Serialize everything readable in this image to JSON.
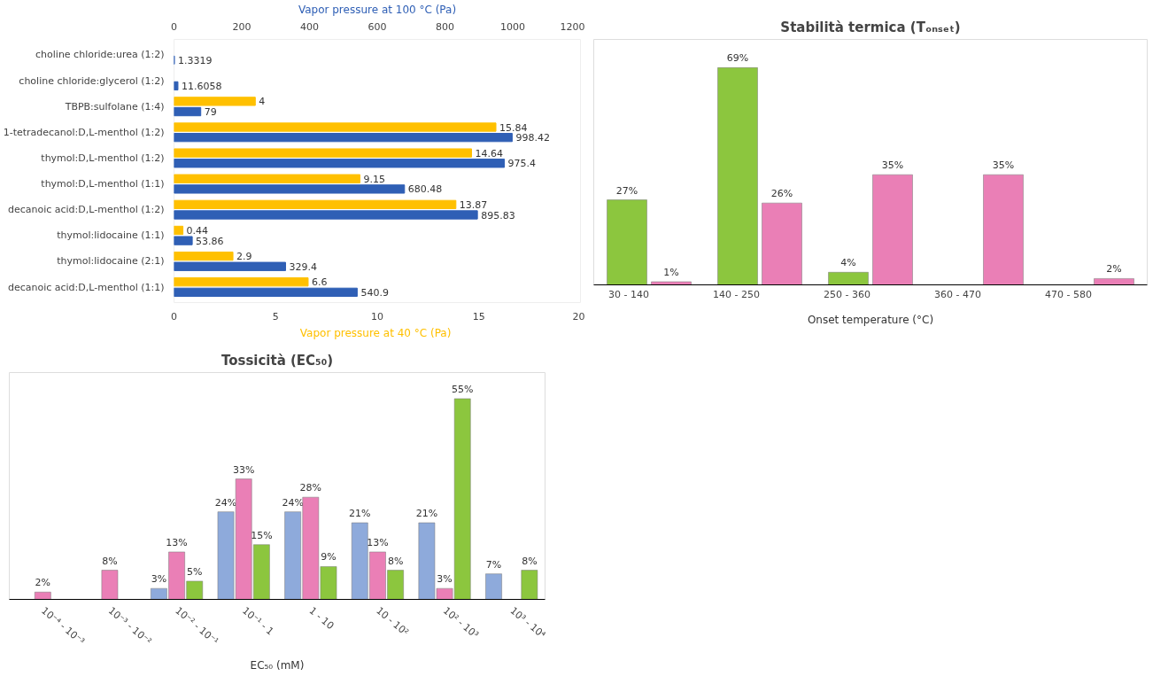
{
  "chart_data": [
    {
      "type": "bar",
      "orientation": "horizontal",
      "categories": [
        "choline chloride:urea (1:2)",
        "choline chloride:glycerol (1:2)",
        "TBPB:sulfolane (1:4)",
        "1-tetradecanol:D,L-menthol (1:2)",
        "thymol:D,L-menthol (1:2)",
        "thymol:D,L-menthol (1:1)",
        "decanoic acid:D,L-menthol (1:2)",
        "thymol:lidocaine (1:1)",
        "thymol:lidocaine (2:1)",
        "decanoic acid:D,L-menthol (1:1)"
      ],
      "xlabel": "Vapor pressure  at 40 °C (Pa)",
      "x2label": "Vapor pressure at 100 °C (Pa)",
      "xlim": [
        0,
        20
      ],
      "xticks": [
        0,
        5,
        10,
        15,
        20
      ],
      "x2lim": [
        0,
        1200
      ],
      "x2ticks": [
        0,
        200,
        400,
        600,
        800,
        1000,
        1200
      ],
      "series": [
        {
          "color": "#ffc000",
          "values": [
            null,
            null,
            4,
            15.84,
            14.64,
            9.15,
            13.87,
            0.44,
            2.9,
            6.6
          ]
        },
        {
          "color": "#2f5fb5",
          "axis": "x2",
          "values": [
            1.3319,
            11.6058,
            79,
            998.42,
            975.4,
            680.48,
            895.83,
            53.86,
            329.4,
            540.9
          ]
        }
      ],
      "data_labels": true,
      "grid": false
    },
    {
      "type": "bar",
      "title": "Stabilità termica (Tₒₙₛₑₜ)",
      "xlabel": "Onset temperature (°C)",
      "categories": [
        "30 - 140",
        "140 - 250",
        "250 - 360",
        "360 - 470",
        "470 - 580"
      ],
      "series": [
        {
          "color": "#8cc63e",
          "values": [
            27,
            69,
            4,
            null,
            null
          ],
          "value_labels": [
            "27%",
            "69%",
            "4%",
            null,
            null
          ]
        },
        {
          "color": "#ea7fb6",
          "values": [
            1,
            26,
            35,
            35,
            2
          ],
          "value_labels": [
            "1%",
            "26%",
            "35%",
            "35%",
            "2%"
          ]
        }
      ],
      "tick_labels": "x",
      "grid": false
    },
    {
      "type": "bar",
      "title": "Tossicità (EC₅₀)",
      "xlabel": "EC₅₀ (mM)",
      "categories": [
        "10⁻⁴ - 10⁻³",
        "10⁻³ - 10⁻²",
        "10⁻² - 10⁻¹",
        "10⁻¹ - 1",
        "1 - 10",
        "10 - 10²",
        "10² - 10³",
        "10³ - 10⁴"
      ],
      "series": [
        {
          "color": "#8eaadb",
          "values": [
            null,
            null,
            3,
            24,
            24,
            21,
            21,
            7
          ],
          "value_labels": [
            null,
            null,
            "3%",
            "24%",
            "24%",
            "21%",
            "21%",
            "7%"
          ]
        },
        {
          "color": "#ea7fb6",
          "values": [
            2,
            8,
            13,
            33,
            28,
            13,
            3,
            null
          ],
          "value_labels": [
            "2%",
            "8%",
            "13%",
            "33%",
            "28%",
            "13%",
            "3%",
            null
          ]
        },
        {
          "color": "#8cc63e",
          "values": [
            null,
            null,
            5,
            15,
            9,
            8,
            55,
            8
          ],
          "value_labels": [
            null,
            null,
            "5%",
            "15%",
            "9%",
            "8%",
            "55%",
            "8%"
          ]
        }
      ],
      "tick_labels": "x",
      "grid": false
    }
  ]
}
